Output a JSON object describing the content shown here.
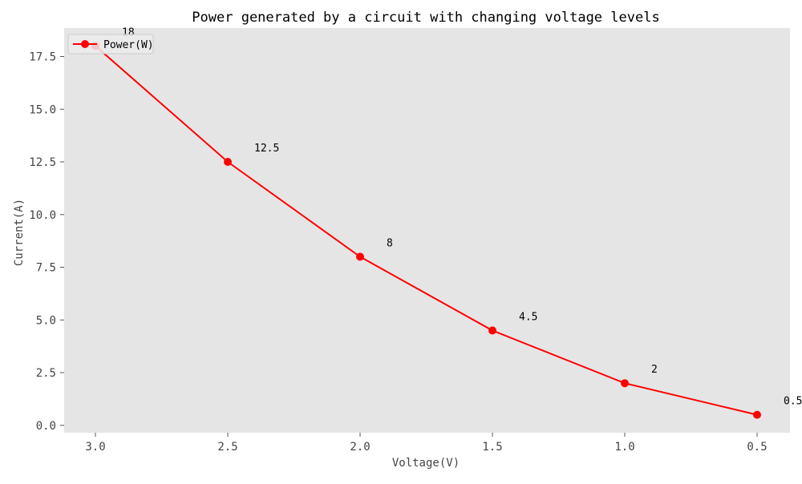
{
  "chart_data": {
    "type": "line",
    "title": "Power generated by a circuit with changing voltage levels",
    "xlabel": "Voltage(V)",
    "ylabel": "Current(A)",
    "x": [
      3.0,
      2.5,
      2.0,
      1.5,
      1.0,
      0.5
    ],
    "x_ticks": [
      "3.0",
      "2.5",
      "2.0",
      "1.5",
      "1.0",
      "0.5"
    ],
    "x_reversed": true,
    "y_ticks": [
      "0.0",
      "2.5",
      "5.0",
      "7.5",
      "10.0",
      "12.5",
      "15.0",
      "17.5"
    ],
    "ylim": [
      -0.35,
      18.85
    ],
    "grid": false,
    "legend_position": "top-left",
    "series": [
      {
        "name": "Power(W)",
        "values": [
          18,
          12.5,
          8,
          4.5,
          2,
          0.5
        ],
        "labels": [
          "18",
          "12.5",
          "8",
          "4.5",
          "2",
          "0.5"
        ],
        "color": "#ff0000",
        "marker": "circle"
      }
    ],
    "plot_background": "#e5e5e5"
  }
}
